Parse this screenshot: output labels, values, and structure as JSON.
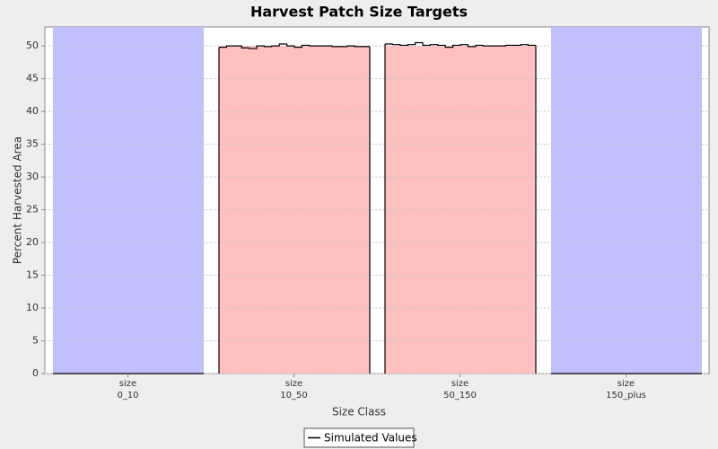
{
  "chart_data": {
    "type": "band-step",
    "title": "Harvest Patch Size Targets",
    "x_label": "Size Class",
    "y_label": "Percent Harvested Area",
    "categories": [
      [
        "size",
        "0_10"
      ],
      [
        "size",
        "10_50"
      ],
      [
        "size",
        "50_150"
      ],
      [
        "size",
        "150_plus"
      ]
    ],
    "target_bands": [
      {
        "value": 52.9,
        "color": "#c0c0ff"
      },
      {
        "value": 50,
        "color": "#ffc0c0"
      },
      {
        "value": 50,
        "color": "#ffc0c0"
      },
      {
        "value": 52.9,
        "color": "#c0c0ff"
      }
    ],
    "series": [
      {
        "name": "Simulated Values",
        "color": "#000000",
        "values": [
          [
            0,
            0,
            0,
            0,
            0,
            0,
            0,
            0,
            0,
            0,
            0,
            0,
            0,
            0,
            0,
            0,
            0,
            0,
            0,
            0
          ],
          [
            49.8,
            50,
            50,
            49.7,
            49.6,
            50,
            49.9,
            50,
            50.3,
            50,
            49.8,
            50.1,
            50,
            50,
            50,
            49.9,
            49.9,
            50,
            49.9,
            49.9
          ],
          [
            50.3,
            50.2,
            50.1,
            50.2,
            50.5,
            50.1,
            50.2,
            50.1,
            49.8,
            50.1,
            50.2,
            49.9,
            50.1,
            50,
            50,
            50,
            50.1,
            50.1,
            50.2,
            50.1
          ],
          [
            0,
            0,
            0,
            0,
            0,
            0,
            0,
            0,
            0,
            0,
            0,
            0,
            0,
            0,
            0,
            0,
            0,
            0,
            0,
            0
          ]
        ]
      }
    ],
    "ylim": [
      0,
      52.9
    ],
    "yticks": [
      0,
      5,
      10,
      15,
      20,
      25,
      30,
      35,
      40,
      45,
      50
    ],
    "grid": true,
    "legend": "bottom"
  }
}
